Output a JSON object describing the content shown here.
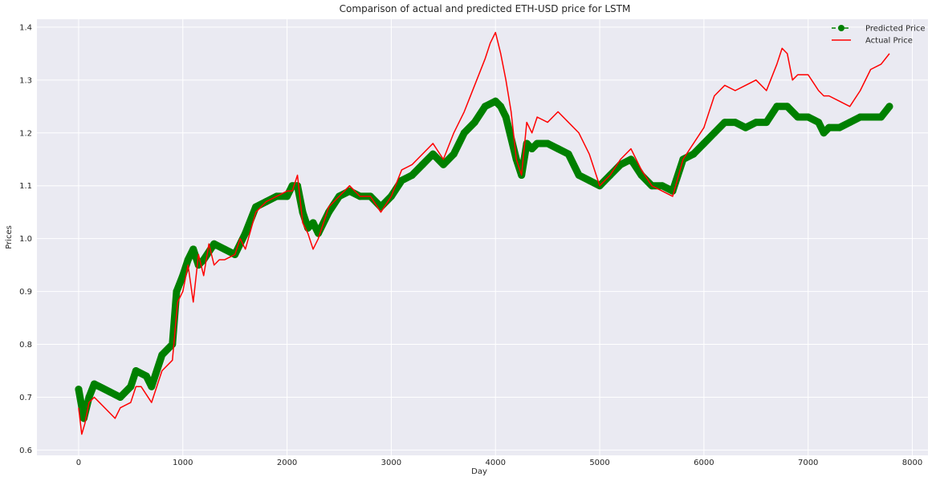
{
  "chart_data": {
    "type": "line",
    "title": "Comparison of actual and predicted ETH-USD price for LSTM",
    "xlabel": "Day",
    "ylabel": "Prices",
    "xlim": [
      -400,
      8150
    ],
    "ylim": [
      0.59,
      1.415
    ],
    "x_ticks": [
      0,
      1000,
      2000,
      3000,
      4000,
      5000,
      6000,
      7000,
      8000
    ],
    "y_ticks": [
      0.6,
      0.7,
      0.8,
      0.9,
      1.0,
      1.1,
      1.2,
      1.3,
      1.4
    ],
    "x_tick_labels": [
      "0",
      "1000",
      "2000",
      "3000",
      "4000",
      "5000",
      "6000",
      "7000",
      "8000"
    ],
    "y_tick_labels": [
      "0.6",
      "0.7",
      "0.8",
      "0.9",
      "1.0",
      "1.1",
      "1.2",
      "1.3",
      "1.4"
    ],
    "grid": true,
    "legend_position": "top-right",
    "background": "#eaeaf2",
    "series": [
      {
        "name": "Predicted Price",
        "color": "#008000",
        "style": "dashed-with-circle-markers",
        "x": [
          0,
          50,
          100,
          150,
          200,
          300,
          400,
          500,
          550,
          650,
          700,
          800,
          900,
          940,
          1000,
          1050,
          1100,
          1150,
          1200,
          1300,
          1400,
          1500,
          1600,
          1700,
          1800,
          1900,
          2000,
          2050,
          2100,
          2150,
          2200,
          2250,
          2300,
          2400,
          2500,
          2600,
          2700,
          2800,
          2900,
          3000,
          3100,
          3200,
          3300,
          3400,
          3500,
          3600,
          3700,
          3800,
          3900,
          4000,
          4050,
          4100,
          4200,
          4250,
          4300,
          4350,
          4400,
          4500,
          4600,
          4700,
          4800,
          4900,
          5000,
          5100,
          5200,
          5300,
          5400,
          5500,
          5600,
          5700,
          5800,
          5900,
          6000,
          6100,
          6200,
          6300,
          6400,
          6500,
          6600,
          6700,
          6800,
          6900,
          7000,
          7100,
          7150,
          7200,
          7300,
          7400,
          7500,
          7600,
          7700,
          7780
        ],
        "y": [
          0.715,
          0.66,
          0.7,
          0.725,
          0.72,
          0.71,
          0.7,
          0.72,
          0.75,
          0.74,
          0.72,
          0.78,
          0.8,
          0.9,
          0.93,
          0.96,
          0.98,
          0.95,
          0.96,
          0.99,
          0.98,
          0.97,
          1.01,
          1.06,
          1.07,
          1.08,
          1.08,
          1.1,
          1.1,
          1.05,
          1.02,
          1.03,
          1.01,
          1.05,
          1.08,
          1.09,
          1.08,
          1.08,
          1.06,
          1.08,
          1.11,
          1.12,
          1.14,
          1.16,
          1.14,
          1.16,
          1.2,
          1.22,
          1.25,
          1.26,
          1.25,
          1.23,
          1.15,
          1.12,
          1.18,
          1.17,
          1.18,
          1.18,
          1.17,
          1.16,
          1.12,
          1.11,
          1.1,
          1.12,
          1.14,
          1.15,
          1.12,
          1.1,
          1.1,
          1.09,
          1.15,
          1.16,
          1.18,
          1.2,
          1.22,
          1.22,
          1.21,
          1.22,
          1.22,
          1.25,
          1.25,
          1.23,
          1.23,
          1.22,
          1.2,
          1.21,
          1.21,
          1.22,
          1.23,
          1.23,
          1.23,
          1.25
        ]
      },
      {
        "name": "Actual Price",
        "color": "#ff0000",
        "style": "solid",
        "x": [
          0,
          30,
          60,
          100,
          150,
          200,
          300,
          350,
          400,
          500,
          550,
          600,
          700,
          750,
          800,
          900,
          950,
          1000,
          1050,
          1100,
          1150,
          1200,
          1250,
          1300,
          1350,
          1400,
          1500,
          1550,
          1600,
          1700,
          1800,
          1900,
          2000,
          2050,
          2100,
          2150,
          2200,
          2250,
          2300,
          2400,
          2500,
          2600,
          2700,
          2800,
          2900,
          3000,
          3100,
          3200,
          3300,
          3400,
          3500,
          3600,
          3700,
          3800,
          3900,
          3950,
          4000,
          4050,
          4100,
          4150,
          4200,
          4250,
          4300,
          4350,
          4400,
          4500,
          4600,
          4700,
          4800,
          4900,
          5000,
          5100,
          5200,
          5300,
          5400,
          5500,
          5600,
          5700,
          5800,
          5900,
          6000,
          6100,
          6200,
          6300,
          6400,
          6500,
          6600,
          6700,
          6750,
          6800,
          6850,
          6900,
          7000,
          7100,
          7150,
          7200,
          7300,
          7400,
          7500,
          7600,
          7700,
          7780
        ],
        "y": [
          0.68,
          0.63,
          0.65,
          0.69,
          0.7,
          0.69,
          0.67,
          0.66,
          0.68,
          0.69,
          0.72,
          0.72,
          0.69,
          0.72,
          0.75,
          0.77,
          0.88,
          0.9,
          0.95,
          0.88,
          0.97,
          0.93,
          0.99,
          0.95,
          0.96,
          0.96,
          0.97,
          1.0,
          0.98,
          1.05,
          1.07,
          1.08,
          1.09,
          1.09,
          1.12,
          1.03,
          1.01,
          0.98,
          1.0,
          1.06,
          1.08,
          1.1,
          1.08,
          1.08,
          1.05,
          1.08,
          1.13,
          1.14,
          1.16,
          1.18,
          1.15,
          1.2,
          1.24,
          1.29,
          1.34,
          1.37,
          1.39,
          1.35,
          1.3,
          1.24,
          1.15,
          1.12,
          1.22,
          1.2,
          1.23,
          1.22,
          1.24,
          1.22,
          1.2,
          1.16,
          1.1,
          1.12,
          1.15,
          1.17,
          1.13,
          1.1,
          1.09,
          1.08,
          1.15,
          1.18,
          1.21,
          1.27,
          1.29,
          1.28,
          1.29,
          1.3,
          1.28,
          1.33,
          1.36,
          1.35,
          1.3,
          1.31,
          1.31,
          1.28,
          1.27,
          1.27,
          1.26,
          1.25,
          1.28,
          1.32,
          1.33,
          1.35
        ]
      }
    ]
  }
}
